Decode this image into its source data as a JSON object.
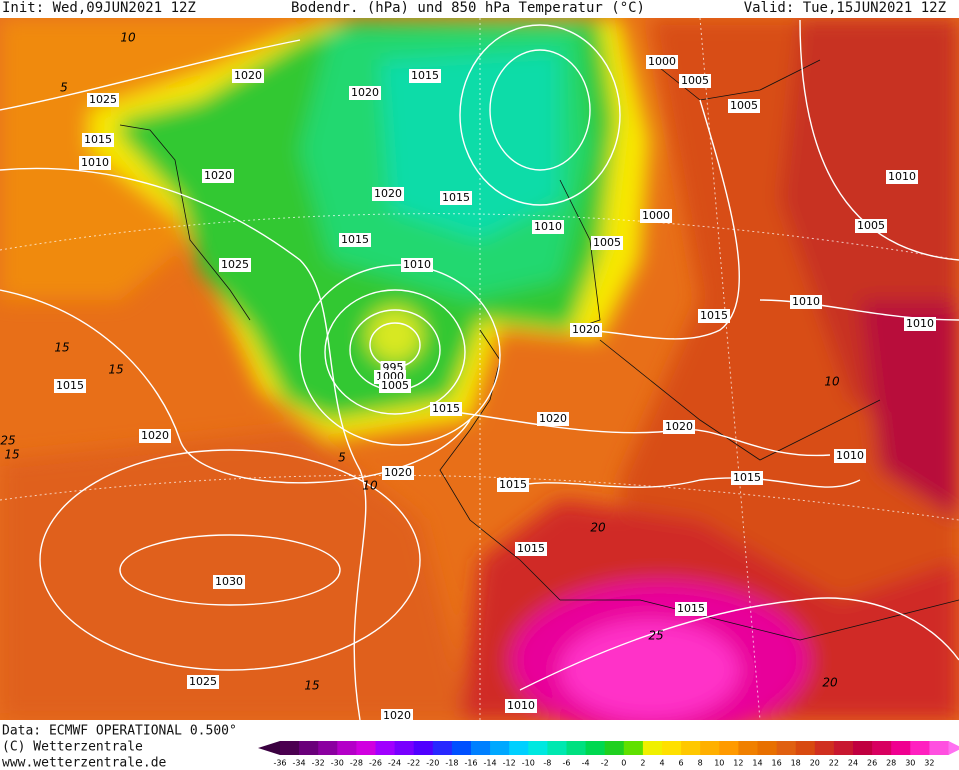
{
  "header": {
    "init": "Init: Wed,09JUN2021 12Z",
    "title": "Bodendr. (hPa) und 850 hPa Temperatur (°C)",
    "valid": "Valid: Tue,15JUN2021 12Z"
  },
  "footer": {
    "data": "Data: ECMWF OPERATIONAL 0.500°",
    "copyright": "(C) Wetterzentrale",
    "url": "www.wetterzentrale.de"
  },
  "colorbar": {
    "ticks": [
      -36,
      -34,
      -32,
      -30,
      -28,
      -26,
      -24,
      -22,
      -20,
      -18,
      -16,
      -14,
      -12,
      -10,
      -8,
      -6,
      -4,
      -2,
      0,
      2,
      4,
      6,
      8,
      10,
      12,
      14,
      16,
      18,
      20,
      22,
      24,
      26,
      28,
      30,
      32
    ]
  },
  "isobar_labels": [
    "1020",
    "1025",
    "1015",
    "1010",
    "1020",
    "1015",
    "1000",
    "1005",
    "1005",
    "1020",
    "1020",
    "1015",
    "1010",
    "1000",
    "1005",
    "1015",
    "1025",
    "1010",
    "1010",
    "1005",
    "1010",
    "1015",
    "1020",
    "1010",
    "995",
    "1000",
    "1005",
    "1015",
    "1015",
    "1020",
    "1020",
    "1020",
    "1010",
    "1020",
    "1015",
    "1015",
    "1015",
    "1030",
    "1015",
    "1025",
    "1010",
    "1020"
  ],
  "temperature_labels": [
    "10",
    "5",
    "15",
    "15",
    "25",
    "15",
    "5",
    "10",
    "20",
    "25",
    "20",
    "15",
    "10"
  ]
}
